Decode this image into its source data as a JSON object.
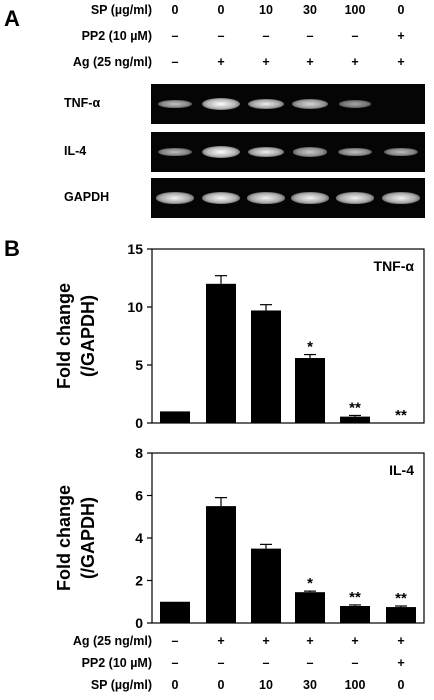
{
  "panel_a": {
    "letter": "A",
    "conditions": [
      {
        "label": "SP (µg/ml)",
        "values": [
          "0",
          "0",
          "10",
          "30",
          "100",
          "0"
        ]
      },
      {
        "label": "PP2 (10 µM)",
        "values": [
          "–",
          "–",
          "–",
          "–",
          "–",
          "+"
        ]
      },
      {
        "label": "Ag (25 ng/ml)",
        "values": [
          "–",
          "+",
          "+",
          "+",
          "+",
          "+"
        ]
      }
    ],
    "gels": [
      {
        "label": "TNF-α",
        "intensity": [
          0.55,
          1.0,
          0.85,
          0.7,
          0.35,
          0.0
        ]
      },
      {
        "label": "IL-4",
        "intensity": [
          0.5,
          1.0,
          0.85,
          0.6,
          0.55,
          0.5
        ]
      },
      {
        "label": "GAPDH",
        "intensity": [
          0.9,
          0.95,
          0.9,
          0.9,
          0.9,
          0.9
        ]
      }
    ]
  },
  "panel_b": {
    "letter": "B",
    "bottom_conditions": [
      {
        "label": "Ag (25 ng/ml)",
        "values": [
          "–",
          "+",
          "+",
          "+",
          "+",
          "+"
        ]
      },
      {
        "label": "PP2 (10 µM)",
        "values": [
          "–",
          "–",
          "–",
          "–",
          "–",
          "+"
        ]
      },
      {
        "label": "SP (µg/ml)",
        "values": [
          "0",
          "0",
          "10",
          "30",
          "100",
          "0"
        ]
      }
    ]
  },
  "chart_data": [
    {
      "type": "bar",
      "title": "TNF-α",
      "ylabel": "Fold change (/GAPDH)",
      "ylabel_lines": [
        "Fold change",
        "(/GAPDH)"
      ],
      "ylim": [
        0,
        15
      ],
      "yticks": [
        0,
        5,
        10,
        15
      ],
      "values": [
        1.0,
        12.0,
        9.7,
        5.6,
        0.55,
        0.0
      ],
      "errors": [
        0.0,
        0.7,
        0.5,
        0.3,
        0.1,
        0.0
      ],
      "annotations": [
        "",
        "",
        "",
        "*",
        "**",
        "**"
      ],
      "grid": false
    },
    {
      "type": "bar",
      "title": "IL-4",
      "ylabel": "Fold change (/GAPDH)",
      "ylabel_lines": [
        "Fold change",
        "(/GAPDH)"
      ],
      "ylim": [
        0,
        8
      ],
      "yticks": [
        0,
        2,
        4,
        6,
        8
      ],
      "values": [
        1.0,
        5.5,
        3.5,
        1.45,
        0.8,
        0.75
      ],
      "errors": [
        0.0,
        0.4,
        0.2,
        0.05,
        0.05,
        0.05
      ],
      "annotations": [
        "",
        "",
        "",
        "*",
        "**",
        "**"
      ],
      "grid": false
    }
  ]
}
